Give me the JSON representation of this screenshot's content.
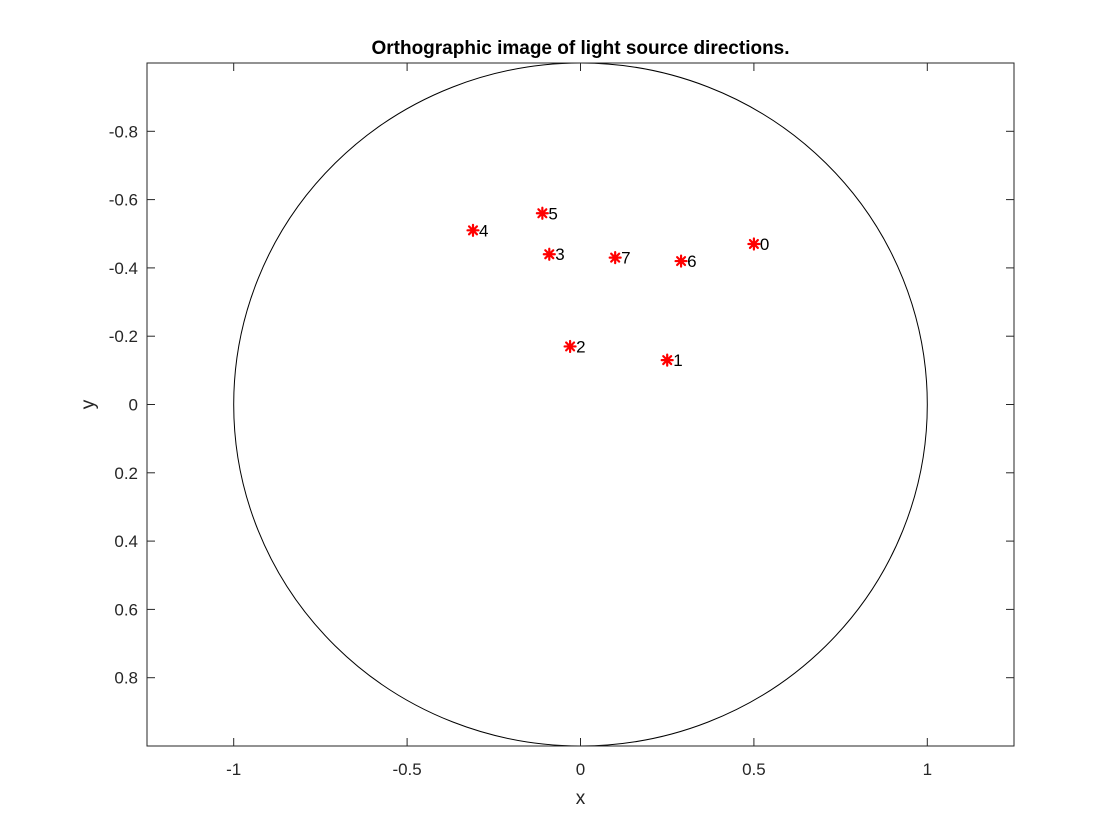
{
  "chart_data": {
    "type": "scatter",
    "title": "Orthographic image of light source directions.",
    "xlabel": "x",
    "ylabel": "y",
    "xlim": [
      -1.25,
      1.25
    ],
    "ylim": [
      -1,
      1
    ],
    "y_reversed": true,
    "grid": false,
    "legend": "none",
    "marker": "asterisk",
    "marker_color": "#ff0000",
    "outline_color": "#000000",
    "x_ticks": [
      -1,
      -0.5,
      0,
      0.5,
      1
    ],
    "x_tick_labels": [
      "-1",
      "-0.5",
      "0",
      "0.5",
      "1"
    ],
    "y_ticks": [
      -0.8,
      -0.6,
      -0.4,
      -0.2,
      0,
      0.2,
      0.4,
      0.6,
      0.8
    ],
    "y_tick_labels": [
      "-0.8",
      "-0.6",
      "-0.4",
      "-0.2",
      "0",
      "0.2",
      "0.4",
      "0.6",
      "0.8"
    ],
    "circle": {
      "cx": 0,
      "cy": 0,
      "r": 1
    },
    "points": [
      {
        "label": "0",
        "x": 0.5,
        "y": -0.47
      },
      {
        "label": "1",
        "x": 0.25,
        "y": -0.13
      },
      {
        "label": "2",
        "x": -0.03,
        "y": -0.17
      },
      {
        "label": "3",
        "x": -0.09,
        "y": -0.44
      },
      {
        "label": "4",
        "x": -0.31,
        "y": -0.51
      },
      {
        "label": "5",
        "x": -0.11,
        "y": -0.56
      },
      {
        "label": "6",
        "x": 0.29,
        "y": -0.42
      },
      {
        "label": "7",
        "x": 0.1,
        "y": -0.43
      }
    ]
  }
}
